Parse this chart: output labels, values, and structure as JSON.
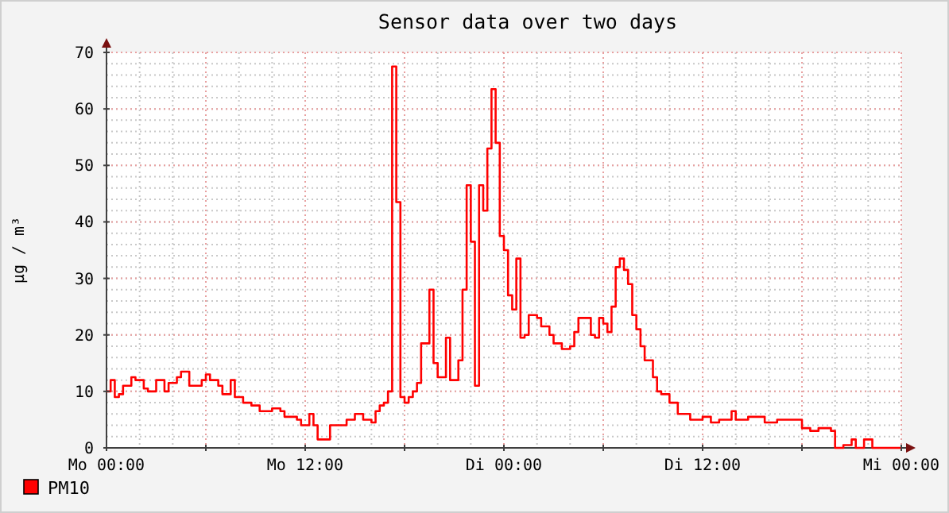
{
  "chart_data": {
    "type": "step",
    "title": "Sensor data over two days",
    "ylabel": "µg / m³",
    "categories": [
      "Mo 00:00",
      null,
      null,
      null,
      null,
      null,
      null,
      null,
      null,
      null,
      null,
      null,
      null,
      null,
      null,
      null,
      null,
      null,
      null,
      null,
      null,
      null,
      null,
      null,
      null,
      null,
      null,
      null,
      null,
      null,
      null,
      null,
      null,
      null,
      null,
      null,
      null,
      null,
      null,
      null,
      null,
      null,
      null,
      null,
      null,
      null,
      null,
      null,
      "Mo 12:00",
      null,
      null,
      null,
      null,
      null,
      null,
      null,
      null,
      null,
      null,
      null,
      null,
      null,
      null,
      null,
      null,
      null,
      null,
      null,
      null,
      null,
      null,
      null,
      null,
      null,
      null,
      null,
      null,
      null,
      null,
      null,
      null,
      null,
      null,
      null,
      null,
      null,
      null,
      null,
      null,
      null,
      null,
      null,
      null,
      null,
      null,
      null,
      "Di 00:00",
      null,
      null,
      null,
      null,
      null,
      null,
      null,
      null,
      null,
      null,
      null,
      null,
      null,
      null,
      null,
      null,
      null,
      null,
      null,
      null,
      null,
      null,
      null,
      null,
      null,
      null,
      null,
      null,
      null,
      null,
      null,
      null,
      null,
      null,
      null,
      null,
      null,
      null,
      null,
      null,
      null,
      null,
      null,
      null,
      null,
      null,
      null,
      "Di 12:00",
      null,
      null,
      null,
      null,
      null,
      null,
      null,
      null,
      null,
      null,
      null,
      null,
      null,
      null,
      null,
      null,
      null,
      null,
      null,
      null,
      null,
      null,
      null,
      null,
      null,
      null,
      null,
      null,
      null,
      null,
      null,
      null,
      null,
      null,
      null,
      null,
      null,
      null,
      null,
      null,
      null,
      null,
      null,
      null,
      null,
      null,
      null,
      "Mi 00:00"
    ],
    "ylim": [
      0,
      70
    ],
    "yticks": [
      0,
      10,
      20,
      30,
      40,
      50,
      60,
      70
    ],
    "grid": true,
    "legend": "bottom left",
    "series": [
      {
        "name": "PM10",
        "color": "#ff0000",
        "values": [
          10,
          12,
          9,
          9.5,
          11,
          11,
          12.5,
          12,
          12,
          10.5,
          10,
          10,
          12,
          12,
          10,
          11.5,
          11.5,
          12.5,
          13.5,
          13.5,
          11,
          11,
          11,
          12,
          13,
          12,
          12,
          11,
          9.5,
          9.5,
          12,
          9,
          9,
          8,
          8,
          7.5,
          7.5,
          6.5,
          6.5,
          6.5,
          7,
          7,
          6.5,
          5.5,
          5.5,
          5.5,
          5,
          4,
          4,
          6,
          4,
          1.5,
          1.5,
          1.5,
          4,
          4,
          4,
          4,
          5,
          5,
          6,
          6,
          5,
          5,
          4.5,
          6.5,
          7.5,
          8,
          10,
          67.5,
          43.5,
          9,
          8,
          9,
          10,
          11.5,
          18.5,
          18.5,
          28,
          15,
          12.5,
          12.5,
          19.5,
          12,
          12,
          15.5,
          28,
          46.5,
          36.5,
          11,
          46.5,
          42,
          53,
          63.5,
          54,
          37.5,
          35,
          27,
          24.5,
          33.5,
          19.5,
          20,
          23.5,
          23.5,
          23,
          21.5,
          21.5,
          20,
          18.5,
          18.5,
          17.5,
          17.5,
          18,
          20.5,
          23,
          23,
          23,
          20,
          19.5,
          23,
          22,
          20.5,
          25,
          32,
          33.5,
          31.5,
          29,
          23.5,
          21,
          18,
          15.5,
          15.5,
          12.5,
          10,
          9.5,
          9.5,
          8,
          8,
          6,
          6,
          6,
          5,
          5,
          5,
          5.5,
          5.5,
          4.5,
          4.5,
          5,
          5,
          5,
          6.5,
          5,
          5,
          5,
          5.5,
          5.5,
          5.5,
          5.5,
          4.5,
          4.5,
          4.5,
          5,
          5,
          5,
          5,
          5,
          5,
          3.5,
          3.5,
          3,
          3,
          3.5,
          3.5,
          3.5,
          3,
          0,
          0,
          0.5,
          0.5,
          1.5,
          0,
          0,
          1.5,
          1.5,
          0,
          0,
          0,
          0,
          0,
          0,
          0,
          0
        ]
      }
    ]
  }
}
